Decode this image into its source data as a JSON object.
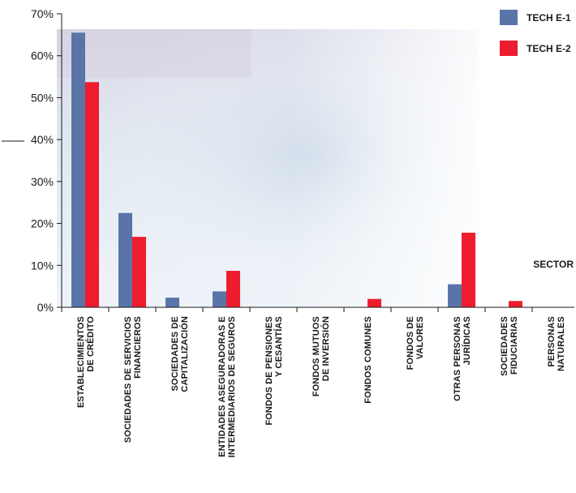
{
  "chart_data": {
    "type": "bar",
    "title": "",
    "xlabel": "SECTOR",
    "ylabel": "",
    "ylim": [
      0,
      70
    ],
    "yticks": [
      "0%",
      "10%",
      "20%",
      "30%",
      "40%",
      "50%",
      "60%",
      "70%"
    ],
    "grid": false,
    "legend_position": "top-right",
    "categories": [
      [
        "ESTABLECIMIENTOS",
        "DE CRÉDITO"
      ],
      [
        "SOCIEDADES DE SERVICIOS",
        "FINANCIEROS"
      ],
      [
        "SOCIEDADES DE",
        "CAPITALIZACIÓN"
      ],
      [
        "ENTIDADES ASEGURADORAS E",
        "INTERMEDIARIOS DE SEGUROS"
      ],
      [
        "FONDOS DE PENSIONES",
        "Y CESANTÍAS"
      ],
      [
        "FONDOS MUTUOS",
        "DE INVERSIÓN"
      ],
      [
        "FONDOS COMUNES"
      ],
      [
        "FONDOS DE",
        "VALORES"
      ],
      [
        "OTRAS PERSONAS",
        "JURÍDICAS"
      ],
      [
        "SOCIEDADES",
        "FIDUCIARIAS"
      ],
      [
        "PERSONAS",
        "NATURALES"
      ]
    ],
    "series": [
      {
        "name": "TECH E-1",
        "color": "#5a74a8",
        "values": [
          65.5,
          22.5,
          2.3,
          3.8,
          0,
          0,
          0,
          0,
          5.5,
          0,
          0
        ]
      },
      {
        "name": "TECH E-2",
        "color": "#ee1c2e",
        "values": [
          53.7,
          16.8,
          0,
          8.7,
          0,
          0,
          2.0,
          0,
          17.8,
          1.5,
          0
        ]
      }
    ]
  }
}
